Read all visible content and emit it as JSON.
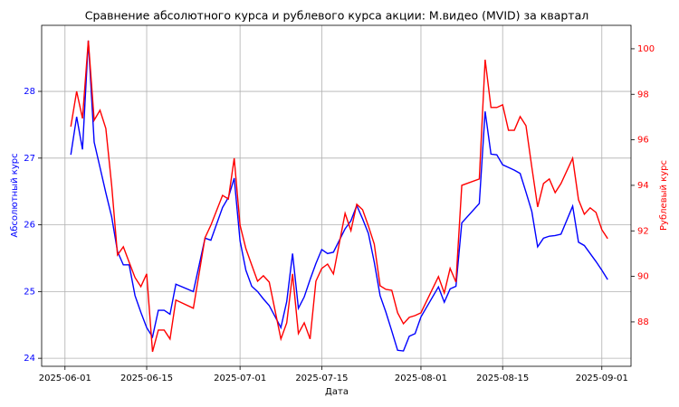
{
  "chart_data": {
    "type": "line",
    "title": "Сравнение абсолютного курса и рублевого курса акции: М.видео (MVID) за квартал",
    "x_label": "Дата",
    "y_label": "Абсолютный курс",
    "y2_label": "Рублевый курс",
    "x": [
      "2025-06-02",
      "2025-06-03",
      "2025-06-04",
      "2025-06-05",
      "2025-06-06",
      "2025-06-07",
      "2025-06-08",
      "2025-06-09",
      "2025-06-10",
      "2025-06-11",
      "2025-06-12",
      "2025-06-13",
      "2025-06-14",
      "2025-06-15",
      "2025-06-16",
      "2025-06-17",
      "2025-06-18",
      "2025-06-19",
      "2025-06-20",
      "2025-06-23",
      "2025-06-25",
      "2025-06-26",
      "2025-06-28",
      "2025-06-29",
      "2025-06-30",
      "2025-07-01",
      "2025-07-02",
      "2025-07-03",
      "2025-07-04",
      "2025-07-05",
      "2025-07-06",
      "2025-07-08",
      "2025-07-09",
      "2025-07-10",
      "2025-07-11",
      "2025-07-12",
      "2025-07-13",
      "2025-07-14",
      "2025-07-15",
      "2025-07-16",
      "2025-07-17",
      "2025-07-19",
      "2025-07-20",
      "2025-07-21",
      "2025-07-22",
      "2025-07-23",
      "2025-07-24",
      "2025-07-25",
      "2025-07-26",
      "2025-07-27",
      "2025-07-28",
      "2025-07-29",
      "2025-07-30",
      "2025-07-31",
      "2025-08-01",
      "2025-08-04",
      "2025-08-05",
      "2025-08-06",
      "2025-08-07",
      "2025-08-08",
      "2025-08-11",
      "2025-08-12",
      "2025-08-13",
      "2025-08-14",
      "2025-08-15",
      "2025-08-16",
      "2025-08-17",
      "2025-08-18",
      "2025-08-19",
      "2025-08-20",
      "2025-08-21",
      "2025-08-22",
      "2025-08-23",
      "2025-08-24",
      "2025-08-25",
      "2025-08-27",
      "2025-08-28",
      "2025-08-29",
      "2025-08-30",
      "2025-08-31",
      "2025-09-01",
      "2025-09-02"
    ],
    "series": [
      {
        "name": "Абсолютный курс",
        "color": "#0000ff",
        "axis": "y",
        "values": [
          27.05,
          27.62,
          27.13,
          28.76,
          27.24,
          26.86,
          26.48,
          26.12,
          25.6,
          25.4,
          25.4,
          24.94,
          24.69,
          24.46,
          24.32,
          24.72,
          24.72,
          24.66,
          25.11,
          25.0,
          25.8,
          25.77,
          26.26,
          26.41,
          26.7,
          25.76,
          25.32,
          25.08,
          25.0,
          24.89,
          24.79,
          24.46,
          24.85,
          25.57,
          24.75,
          24.92,
          25.18,
          25.42,
          25.63,
          25.57,
          25.59,
          25.94,
          26.06,
          26.29,
          26.09,
          25.87,
          25.44,
          24.94,
          24.69,
          24.41,
          24.12,
          24.11,
          24.33,
          24.37,
          24.62,
          25.07,
          24.84,
          25.04,
          25.08,
          26.03,
          26.32,
          27.7,
          27.06,
          27.05,
          26.9,
          26.86,
          26.82,
          26.77,
          26.49,
          26.2,
          25.67,
          25.8,
          25.83,
          25.84,
          25.86,
          26.28,
          25.74,
          25.69,
          25.57,
          25.45,
          25.32,
          25.18
        ]
      },
      {
        "name": "Рублевый курс",
        "color": "#ff0000",
        "axis": "y2",
        "values": [
          96.58,
          98.13,
          96.94,
          100.36,
          96.86,
          97.3,
          96.5,
          94.0,
          90.94,
          91.3,
          90.62,
          89.95,
          89.55,
          90.11,
          86.69,
          87.64,
          87.64,
          87.25,
          88.96,
          88.6,
          91.7,
          92.25,
          93.56,
          93.4,
          95.19,
          92.25,
          91.22,
          90.5,
          89.79,
          90.03,
          89.75,
          87.25,
          87.96,
          90.11,
          87.49,
          87.96,
          87.25,
          89.79,
          90.35,
          90.54,
          90.11,
          92.77,
          92.01,
          93.17,
          92.93,
          92.21,
          91.42,
          89.59,
          89.43,
          89.39,
          88.4,
          87.92,
          88.2,
          88.28,
          88.4,
          89.99,
          89.27,
          90.35,
          89.75,
          94.0,
          94.28,
          99.52,
          97.42,
          97.42,
          97.54,
          96.42,
          96.42,
          97.02,
          96.62,
          94.8,
          93.05,
          94.08,
          94.28,
          93.68,
          94.08,
          95.19,
          93.37,
          92.73,
          93.01,
          92.81,
          92.05,
          91.66
        ]
      }
    ],
    "xlim": [
      "2025-05-28",
      "2025-09-06"
    ],
    "xticks": [
      "2025-06-01",
      "2025-06-15",
      "2025-07-01",
      "2025-07-15",
      "2025-08-01",
      "2025-08-15",
      "2025-09-01"
    ],
    "ylim": [
      23.88,
      28.99
    ],
    "yticks": [
      24,
      25,
      26,
      27,
      28
    ],
    "y2lim": [
      86.05,
      101.03
    ],
    "y2ticks": [
      88,
      90,
      92,
      94,
      96,
      98,
      100
    ],
    "grid": true
  }
}
